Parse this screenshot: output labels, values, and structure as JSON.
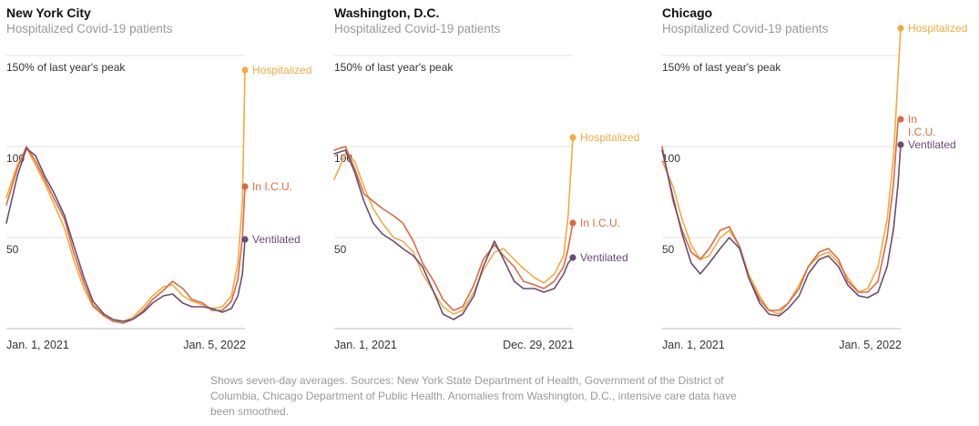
{
  "colors": {
    "hospitalized": "#f2ac3f",
    "icu": "#dc6a3d",
    "ventilated": "#6b4b74",
    "grid": "#e2e2e2",
    "axis": "#bbbbbb"
  },
  "footnote": "Shows seven-day averages. Sources: New York State Department of Health, Government of the District of Columbia, Chicago Department of Public Health. Anomalies from Washington, D.C., intensive care data have been smoothed.",
  "chart_data": [
    {
      "type": "line",
      "title": "New York City",
      "subtitle": "Hospitalized Covid-19 patients",
      "y_unit": "percent of last year's peak",
      "ylim": [
        0,
        150
      ],
      "y_reference_lines": [
        {
          "value": 150,
          "label": "150% of last year's peak"
        },
        {
          "value": 100,
          "label": "100"
        },
        {
          "value": 50,
          "label": "50"
        }
      ],
      "xlim": [
        "2021-01-01",
        "2022-01-05"
      ],
      "x_tick_labels": [
        "Jan. 1, 2021",
        "Jan. 5, 2022"
      ],
      "x": [
        "2021-01-01",
        "2021-01-18",
        "2021-02-01",
        "2021-02-15",
        "2021-03-01",
        "2021-03-15",
        "2021-04-01",
        "2021-04-15",
        "2021-05-01",
        "2021-05-15",
        "2021-06-01",
        "2021-06-15",
        "2021-07-01",
        "2021-07-15",
        "2021-08-01",
        "2021-08-15",
        "2021-09-01",
        "2021-09-15",
        "2021-10-01",
        "2021-10-15",
        "2021-11-01",
        "2021-11-15",
        "2021-12-01",
        "2021-12-15",
        "2021-12-25",
        "2022-01-01",
        "2022-01-05"
      ],
      "series": [
        {
          "name": "Hospitalized",
          "values": [
            72,
            90,
            99,
            90,
            80,
            69,
            55,
            38,
            22,
            12,
            7,
            4,
            4,
            6,
            12,
            18,
            23,
            24,
            18,
            15,
            13,
            11,
            12,
            18,
            36,
            70,
            142
          ]
        },
        {
          "name": "In I.C.U.",
          "values": [
            68,
            88,
            100,
            92,
            82,
            72,
            60,
            42,
            25,
            13,
            7,
            4,
            3,
            5,
            10,
            16,
            21,
            26,
            22,
            16,
            14,
            10,
            10,
            15,
            27,
            50,
            78
          ]
        },
        {
          "name": "Ventilated",
          "values": [
            58,
            84,
            99,
            95,
            84,
            75,
            62,
            46,
            28,
            15,
            8,
            5,
            4,
            5,
            9,
            14,
            18,
            19,
            14,
            12,
            12,
            11,
            9,
            11,
            18,
            30,
            49
          ]
        }
      ],
      "end_labels": [
        "Hospitalized",
        "In I.C.U.",
        "Ventilated"
      ]
    },
    {
      "type": "line",
      "title": "Washington, D.C.",
      "subtitle": "Hospitalized Covid-19 patients",
      "y_unit": "percent of last year's peak",
      "ylim": [
        0,
        150
      ],
      "y_reference_lines": [
        {
          "value": 150,
          "label": "150% of last year's peak"
        },
        {
          "value": 100,
          "label": "100"
        },
        {
          "value": 50,
          "label": "50"
        }
      ],
      "xlim": [
        "2021-01-01",
        "2021-12-29"
      ],
      "x_tick_labels": [
        "Jan. 1, 2021",
        "Dec. 29, 2021"
      ],
      "x": [
        "2021-01-01",
        "2021-01-18",
        "2021-02-01",
        "2021-02-15",
        "2021-03-01",
        "2021-03-15",
        "2021-04-01",
        "2021-04-15",
        "2021-05-01",
        "2021-05-15",
        "2021-06-01",
        "2021-06-15",
        "2021-07-01",
        "2021-07-15",
        "2021-08-01",
        "2021-08-15",
        "2021-09-01",
        "2021-09-15",
        "2021-10-01",
        "2021-10-15",
        "2021-11-01",
        "2021-11-15",
        "2021-12-01",
        "2021-12-15",
        "2021-12-22",
        "2021-12-29"
      ],
      "series": [
        {
          "name": "Hospitalized",
          "values": [
            82,
            96,
            92,
            78,
            66,
            58,
            50,
            48,
            42,
            30,
            20,
            12,
            8,
            10,
            20,
            32,
            42,
            44,
            38,
            33,
            28,
            25,
            30,
            40,
            62,
            105
          ]
        },
        {
          "name": "In I.C.U.",
          "values": [
            98,
            100,
            88,
            74,
            70,
            66,
            62,
            58,
            48,
            36,
            26,
            16,
            10,
            12,
            24,
            38,
            46,
            40,
            34,
            26,
            24,
            22,
            26,
            34,
            44,
            58
          ]
        },
        {
          "name": "Ventilated",
          "values": [
            96,
            98,
            86,
            70,
            58,
            52,
            48,
            44,
            40,
            34,
            20,
            8,
            5,
            8,
            18,
            34,
            48,
            38,
            26,
            22,
            22,
            20,
            22,
            30,
            36,
            39
          ]
        }
      ],
      "end_labels": [
        "Hospitalized",
        "In I.C.U.",
        "Ventilated"
      ]
    },
    {
      "type": "line",
      "title": "Chicago",
      "subtitle": "Hospitalized Covid-19 patients",
      "y_unit": "percent of last year's peak",
      "ylim": [
        0,
        150
      ],
      "y_reference_lines": [
        {
          "value": 150,
          "label": "150% of last year's peak"
        },
        {
          "value": 100,
          "label": "100"
        },
        {
          "value": 50,
          "label": "50"
        }
      ],
      "xlim": [
        "2021-01-01",
        "2022-01-05"
      ],
      "x_tick_labels": [
        "Jan. 1, 2021",
        "Jan. 5, 2022"
      ],
      "x": [
        "2021-01-01",
        "2021-01-18",
        "2021-02-01",
        "2021-02-15",
        "2021-03-01",
        "2021-03-15",
        "2021-04-01",
        "2021-04-15",
        "2021-05-01",
        "2021-05-15",
        "2021-06-01",
        "2021-06-15",
        "2021-07-01",
        "2021-07-15",
        "2021-08-01",
        "2021-08-15",
        "2021-09-01",
        "2021-09-15",
        "2021-10-01",
        "2021-10-15",
        "2021-11-01",
        "2021-11-15",
        "2021-12-01",
        "2021-12-15",
        "2021-12-25",
        "2022-01-01",
        "2022-01-05"
      ],
      "series": [
        {
          "name": "Hospitalized",
          "values": [
            92,
            78,
            60,
            46,
            38,
            40,
            50,
            54,
            45,
            30,
            18,
            10,
            8,
            14,
            24,
            34,
            40,
            42,
            36,
            28,
            20,
            22,
            34,
            60,
            95,
            140,
            165
          ]
        },
        {
          "name": "In I.C.U.",
          "values": [
            100,
            70,
            54,
            42,
            38,
            44,
            54,
            56,
            45,
            28,
            16,
            10,
            10,
            14,
            22,
            34,
            42,
            44,
            38,
            26,
            20,
            20,
            26,
            50,
            80,
            115,
            115
          ]
        },
        {
          "name": "Ventilated",
          "values": [
            98,
            72,
            52,
            36,
            30,
            36,
            44,
            50,
            44,
            28,
            14,
            8,
            7,
            11,
            18,
            30,
            38,
            40,
            34,
            24,
            18,
            17,
            20,
            34,
            55,
            80,
            101
          ]
        }
      ],
      "end_labels": [
        "Hospitalized",
        "In\nI.C.U.",
        "Ventilated"
      ]
    }
  ]
}
